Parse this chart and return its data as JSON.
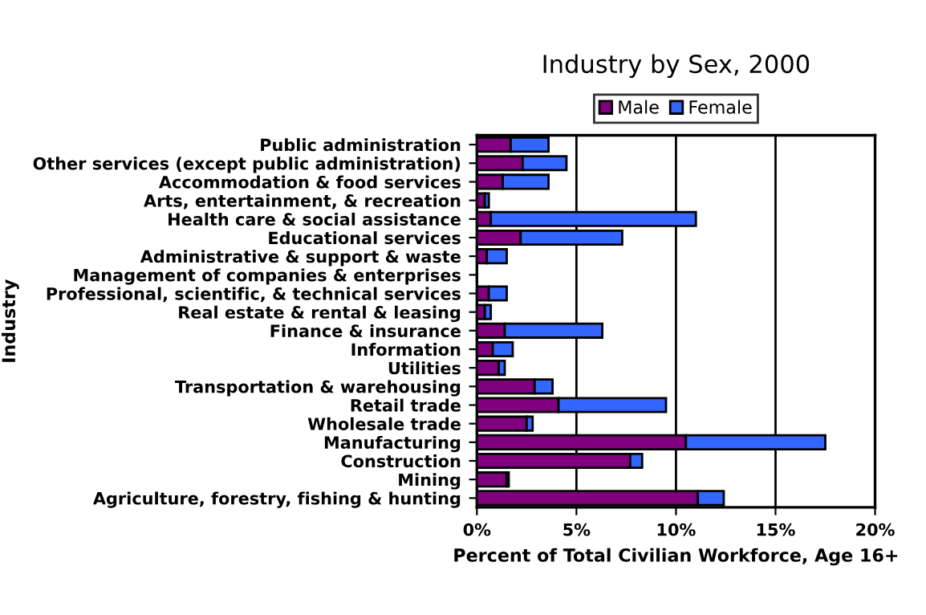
{
  "chart_data": {
    "type": "bar",
    "title": "Industry by Sex, 2000",
    "xlabel": "Percent of Total Civilian Workforce, Age 16+",
    "ylabel": "Industry",
    "orientation": "horizontal",
    "stacked": true,
    "legend": "top",
    "grid": "x",
    "categories": [
      "Public administration",
      "Other services (except public administration)",
      "Accommodation & food services",
      "Arts, entertainment, & recreation",
      "Health care & social assistance",
      "Educational services",
      "Administrative & support & waste",
      "Management of companies & enterprises",
      "Professional, scientific, & technical services",
      "Real estate & rental & leasing",
      "Finance & insurance",
      "Information",
      "Utilities",
      "Transportation & warehousing",
      "Retail trade",
      "Wholesale trade",
      "Manufacturing",
      "Construction",
      "Mining",
      "Agriculture, forestry, fishing & hunting"
    ],
    "series": [
      {
        "name": "Male",
        "color": "#800080",
        "values": [
          1.7,
          2.3,
          1.3,
          0.4,
          0.7,
          2.2,
          0.5,
          null,
          0.6,
          0.4,
          1.4,
          0.8,
          1.1,
          2.9,
          4.1,
          2.5,
          10.5,
          7.7,
          1.5,
          11.1
        ]
      },
      {
        "name": "Female",
        "color": "#3366ff",
        "values": [
          1.9,
          2.2,
          2.3,
          0.2,
          10.3,
          5.1,
          1.0,
          null,
          0.9,
          0.3,
          4.9,
          1.0,
          0.3,
          0.9,
          5.4,
          0.3,
          7.0,
          0.6,
          0.1,
          1.3
        ]
      }
    ],
    "xlim": [
      0,
      20
    ],
    "xticks": [
      {
        "value": 0,
        "label": "0%"
      },
      {
        "value": 5,
        "label": "5%"
      },
      {
        "value": 10,
        "label": "10%"
      },
      {
        "value": 15,
        "label": "15%"
      },
      {
        "value": 20,
        "label": "20%"
      }
    ]
  }
}
